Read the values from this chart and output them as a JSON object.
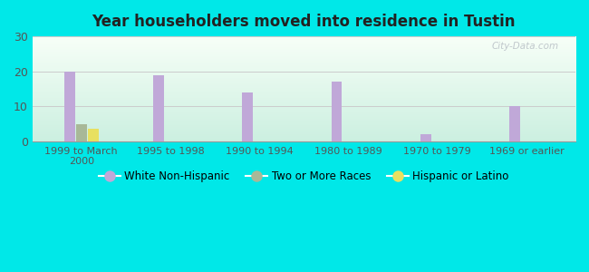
{
  "title": "Year householders moved into residence in Tustin",
  "categories": [
    "1999 to March\n2000",
    "1995 to 1998",
    "1990 to 1994",
    "1980 to 1989",
    "1970 to 1979",
    "1969 or earlier"
  ],
  "series": {
    "White Non-Hispanic": [
      20,
      19,
      14,
      17,
      2,
      10
    ],
    "Two or More Races": [
      5,
      0,
      0,
      0,
      0,
      0
    ],
    "Hispanic or Latino": [
      3.5,
      0,
      0,
      0,
      0,
      0
    ]
  },
  "colors": {
    "White Non-Hispanic": "#c0a8d8",
    "Two or More Races": "#a8b898",
    "Hispanic or Latino": "#e8e060"
  },
  "ylim": [
    0,
    30
  ],
  "yticks": [
    0,
    10,
    20,
    30
  ],
  "bar_width": 0.12,
  "background_outer": "#00e8e8",
  "grid_color": "#cccccc",
  "watermark": "City-Data.com",
  "legend_labels": [
    "White Non-Hispanic",
    "Two or More Races",
    "Hispanic or Latino"
  ]
}
